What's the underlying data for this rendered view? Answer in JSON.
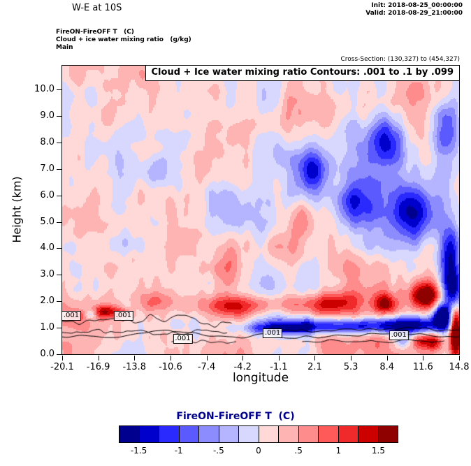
{
  "header": {
    "title": "W-E at 10S",
    "init": "Init: 2018-08-25_00:00:00",
    "valid": "Valid: 2018-08-29_21:00:00",
    "field_line": "FireON-FireOFF T   (C)",
    "overlay_line": "Cloud + ice water mixing ratio   (g/kg)",
    "grid_line": "Main",
    "cross_section": "Cross-Section: (130,327) to (454,327)"
  },
  "plot": {
    "banner": "Cloud + Ice water mixing ratio Contours: .001 to .1 by .099",
    "xlabel": "longitude",
    "ylabel": "Height (km)",
    "x_tick_labels": [
      "-20.1",
      "-16.9",
      "-13.8",
      "-10.6",
      "-7.4",
      "-4.2",
      "-1.1",
      "2.1",
      "5.3",
      "8.4",
      "11.6",
      "14.8"
    ],
    "y_tick_labels": [
      "10.0",
      "9.0",
      "8.0",
      "7.0",
      "6.0",
      "5.0",
      "4.0",
      "3.0",
      "2.0",
      "1.0",
      "0.0"
    ]
  },
  "colorbar": {
    "title": "FireON-FireOFF T  (C)",
    "title_color": "#00008b",
    "tick_labels": [
      "-1.5",
      "-1",
      "-.5",
      "0",
      ".5",
      "1",
      "1.5"
    ],
    "colors": [
      "#00008f",
      "#0000cd",
      "#2a2aff",
      "#5a5aff",
      "#8c8cff",
      "#b4b4ff",
      "#d8d8ff",
      "#ffd8d8",
      "#ffb4b4",
      "#ff8c8c",
      "#ff5a5a",
      "#f02a2a",
      "#cd0000",
      "#8f0000"
    ]
  },
  "chart_data": {
    "type": "heatmap",
    "title": "W-E at 10S vertical cross-section",
    "xlabel": "longitude",
    "ylabel": "Height (km)",
    "xlim": [
      -20.1,
      14.8
    ],
    "ylim": [
      0,
      10.9
    ],
    "x_ticks": [
      -20.1,
      -16.9,
      -13.8,
      -10.6,
      -7.4,
      -4.2,
      -1.1,
      2.1,
      5.3,
      8.4,
      11.6,
      14.8
    ],
    "y_ticks": [
      0,
      1,
      2,
      3,
      4,
      5,
      6,
      7,
      8,
      9,
      10
    ],
    "fill_variable": "FireON-FireOFF temperature difference (C)",
    "fill_levels": [
      -1.5,
      -1.25,
      -1,
      -0.75,
      -0.5,
      -0.25,
      0,
      0.25,
      0.5,
      0.75,
      1,
      1.25,
      1.5
    ],
    "contour_variable": "Cloud + Ice water mixing ratio (g/kg)",
    "contour_levels_info": ".001 to .1 by .099",
    "contour_labels": [
      {
        "lon": -19.3,
        "km": 1.45,
        "text": ".001"
      },
      {
        "lon": -14.7,
        "km": 1.45,
        "text": ".001"
      },
      {
        "lon": -9.5,
        "km": 0.58,
        "text": ".001"
      },
      {
        "lon": -1.6,
        "km": 0.8,
        "text": ".001"
      },
      {
        "lon": 9.5,
        "km": 0.72,
        "text": ".001"
      }
    ],
    "noise": {
      "seed": 7,
      "bias": 0.12
    },
    "features": [
      [
        2.1,
        7.0,
        1.6,
        0.9,
        -1.5
      ],
      [
        8.4,
        8.2,
        1.8,
        0.9,
        -1.2
      ],
      [
        11.0,
        5.2,
        1.8,
        1.1,
        -1.3
      ],
      [
        13.6,
        8.6,
        1.5,
        1.0,
        -1.1
      ],
      [
        5.5,
        5.6,
        1.6,
        0.9,
        -0.9
      ],
      [
        8.0,
        6.5,
        4.5,
        2.2,
        -0.8
      ],
      [
        13.9,
        3.6,
        0.9,
        1.3,
        -1.6
      ],
      [
        14.2,
        2.3,
        0.8,
        0.8,
        -1.0
      ],
      [
        -3.0,
        1.85,
        7.0,
        0.38,
        0.9
      ],
      [
        3.5,
        1.95,
        3.0,
        0.45,
        0.8
      ],
      [
        -16.2,
        1.6,
        1.2,
        0.25,
        1.2
      ],
      [
        11.8,
        2.2,
        1.4,
        0.5,
        1.8
      ],
      [
        8.3,
        1.9,
        1.0,
        0.35,
        1.2
      ],
      [
        4.0,
        1.05,
        7.5,
        0.28,
        -1.6
      ],
      [
        10.5,
        1.15,
        3.5,
        0.35,
        -1.4
      ],
      [
        -1.0,
        0.95,
        2.5,
        0.2,
        -0.8
      ],
      [
        14.5,
        0.9,
        0.55,
        0.9,
        2.8
      ],
      [
        13.3,
        1.45,
        0.7,
        0.4,
        -2.2
      ],
      [
        12.6,
        0.45,
        0.8,
        0.35,
        1.2
      ],
      [
        11.3,
        0.5,
        0.8,
        0.3,
        0.9
      ],
      [
        9.8,
        0.5,
        0.8,
        0.35,
        -0.8
      ],
      [
        -19.0,
        1.45,
        0.8,
        0.18,
        0.9
      ],
      [
        -17.6,
        1.5,
        0.5,
        0.18,
        -0.8
      ],
      [
        -14.6,
        1.5,
        0.7,
        0.2,
        1.0
      ],
      [
        -0.5,
        3.9,
        2.0,
        0.8,
        0.55
      ],
      [
        -5.5,
        3.4,
        1.8,
        0.7,
        0.5
      ],
      [
        1.0,
        5.0,
        1.2,
        0.7,
        0.5
      ],
      [
        -12.0,
        2.0,
        1.5,
        0.4,
        0.6
      ]
    ],
    "contour_lines": [
      [
        -20.1,
        -5.2,
        1.3,
        0.35,
        0.8,
        2
      ],
      [
        -20.1,
        -5.6,
        0.85,
        0.2,
        1.0,
        5
      ],
      [
        -20.1,
        14.8,
        0.7,
        0.25,
        0.45,
        9
      ],
      [
        -10.5,
        -4.8,
        0.5,
        0.12,
        1.3,
        13
      ],
      [
        -2.0,
        14.8,
        0.95,
        0.18,
        0.6,
        17
      ],
      [
        1.0,
        13.5,
        0.5,
        0.1,
        0.8,
        21
      ]
    ]
  }
}
